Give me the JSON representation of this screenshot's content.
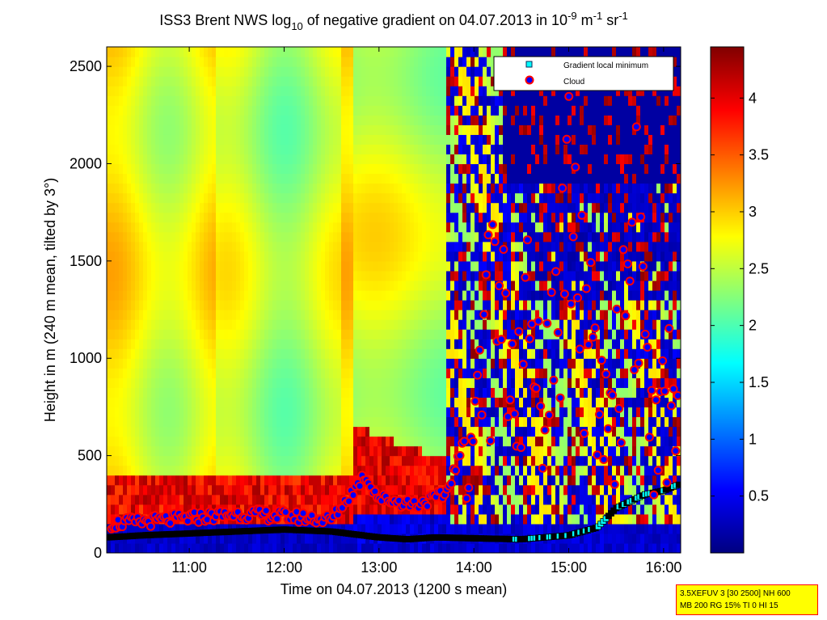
{
  "chart_data": {
    "type": "heatmap",
    "title": "ISS3 Brent NWS log",
    "title_sub": "10",
    "title_rest": " of negative gradient on 04.07.2013 in 10",
    "title_exp1": "-9",
    "title_unit1": " m",
    "title_exp2": "-1",
    "title_unit2": " sr",
    "title_exp3": "-1",
    "xlabel": "Time on 04.07.2013 (1200 s mean)",
    "ylabel": "Height in m (240 m mean, tilted by 3°)",
    "xticks": [
      "11:00",
      "12:00",
      "13:00",
      "14:00",
      "15:00",
      "16:00"
    ],
    "yticks": [
      "0",
      "500",
      "1000",
      "1500",
      "2000",
      "2500"
    ],
    "xlim_hours": [
      10.13,
      16.18
    ],
    "ylim": [
      0,
      2600
    ],
    "colorbar": {
      "ticks": [
        "0.5",
        "1",
        "1.5",
        "2",
        "2.5",
        "3",
        "3.5",
        "4"
      ],
      "range": [
        0,
        4.45
      ],
      "colormap": "jet"
    },
    "legend": {
      "position": "top-right",
      "entries": [
        {
          "label": "Gradient local minimum",
          "marker": "square",
          "color": "#00ffff"
        },
        {
          "label": "Cloud",
          "marker": "circle",
          "color": "#0000ff",
          "edge": "#ff0000"
        }
      ]
    },
    "series": [
      {
        "name": "Gradient local minimum",
        "x_hours": [
          10.15,
          10.5,
          11.0,
          11.5,
          12.0,
          12.5,
          13.0,
          13.3,
          13.6,
          14.0,
          14.5,
          15.0,
          15.3,
          15.5,
          15.8,
          16.0,
          16.15
        ],
        "y": [
          80,
          90,
          100,
          110,
          120,
          110,
          80,
          70,
          80,
          75,
          70,
          90,
          130,
          230,
          300,
          320,
          350
        ]
      },
      {
        "name": "Cloud",
        "x_hours": [
          10.2,
          10.5,
          11.0,
          11.5,
          12.0,
          12.5,
          12.85,
          13.0,
          13.4,
          13.7,
          14.0,
          14.15,
          14.25,
          14.4,
          14.6,
          14.8,
          15.0,
          15.3,
          15.5,
          15.7,
          15.9,
          16.1
        ],
        "y": [
          150,
          160,
          180,
          200,
          190,
          170,
          400,
          280,
          250,
          300,
          700,
          1500,
          1450,
          1200,
          1350,
          1100,
          2300,
          900,
          1000,
          2250,
          600,
          1100
        ]
      }
    ]
  },
  "info_box": {
    "line1": "3.5XEFUV 3 [30 2500] NH 600",
    "line2": "MB 200 RG 15% TI 0 HI 15"
  },
  "colors": {
    "accent_cloud_fill": "#0000ff",
    "accent_cloud_edge": "#ff0000",
    "accent_min": "#00ffff",
    "infobox_bg": "#ffff00"
  }
}
